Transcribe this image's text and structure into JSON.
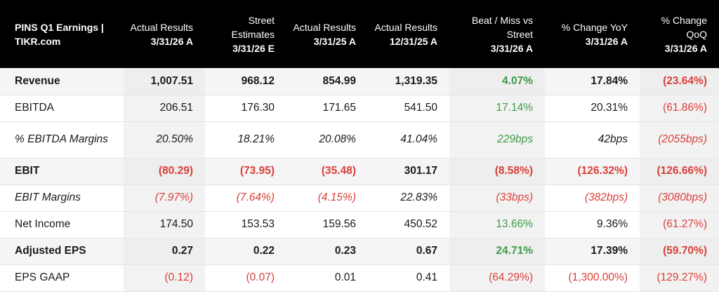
{
  "header": {
    "title": "PINS Q1 Earnings | TIKR.com",
    "columns": [
      {
        "label": "Actual Results",
        "date": "3/31/26 A"
      },
      {
        "label": "Street Estimates",
        "date": "3/31/26 E"
      },
      {
        "label": "Actual Results",
        "date": "3/31/25 A"
      },
      {
        "label": "Actual Results",
        "date": "12/31/25 A"
      },
      {
        "label": "Beat / Miss vs Street",
        "date": "3/31/26 A"
      },
      {
        "label": "% Change YoY",
        "date": "3/31/26 A"
      },
      {
        "label": "% Change QoQ",
        "date": "3/31/26 A"
      }
    ]
  },
  "rows": [
    {
      "label": "Revenue",
      "values": [
        "1,007.51",
        "968.12",
        "854.99",
        "1,319.35",
        "4.07%",
        "17.84%",
        "(23.64%)"
      ]
    },
    {
      "label": "EBITDA",
      "values": [
        "206.51",
        "176.30",
        "171.65",
        "541.50",
        "17.14%",
        "20.31%",
        "(61.86%)"
      ]
    },
    {
      "label": "% EBITDA Margins",
      "values": [
        "20.50%",
        "18.21%",
        "20.08%",
        "41.04%",
        "229bps",
        "42bps",
        "(2055bps)"
      ]
    },
    {
      "label": "EBIT",
      "values": [
        "(80.29)",
        "(73.95)",
        "(35.48)",
        "301.17",
        "(8.58%)",
        "(126.32%)",
        "(126.66%)"
      ]
    },
    {
      "label": "EBIT Margins",
      "values": [
        "(7.97%)",
        "(7.64%)",
        "(4.15%)",
        "22.83%",
        "(33bps)",
        "(382bps)",
        "(3080bps)"
      ]
    },
    {
      "label": "Net Income",
      "values": [
        "174.50",
        "153.53",
        "159.56",
        "450.52",
        "13.66%",
        "9.36%",
        "(61.27%)"
      ]
    },
    {
      "label": "Adjusted EPS",
      "values": [
        "0.27",
        "0.22",
        "0.23",
        "0.67",
        "24.71%",
        "17.39%",
        "(59.70%)"
      ]
    },
    {
      "label": "EPS GAAP",
      "values": [
        "(0.12)",
        "(0.07)",
        "0.01",
        "0.41",
        "(64.29%)",
        "(1,300.00%)",
        "(129.27%)"
      ]
    }
  ],
  "colors": {
    "negative": "#d9403a",
    "positive": "#3f9a48",
    "header_bg": "#000000"
  }
}
